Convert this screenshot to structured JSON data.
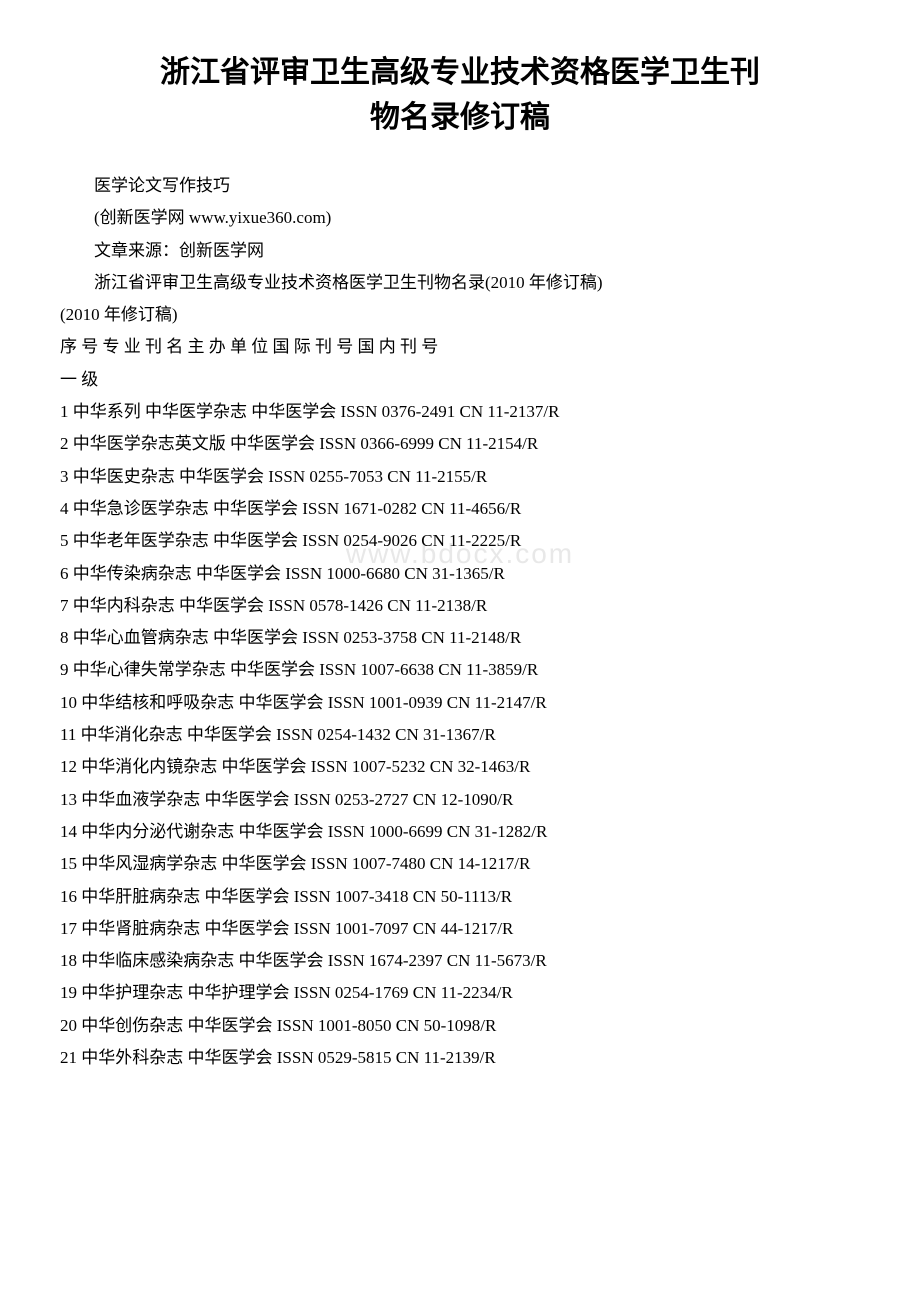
{
  "title_line1": "浙江省评审卫生高级专业技术资格医学卫生刊",
  "title_line2": "物名录修订稿",
  "p1": "医学论文写作技巧",
  "p2": "(创新医学网 www.yixue360.com)",
  "p3": "文章来源：创新医学网",
  "p4": "浙江省评审卫生高级专业技术资格医学卫生刊物名录(2010 年修订稿)",
  "p5": "(2010 年修订稿)",
  "header_row": "序 号 专   业 刊   名 主 办 单 位 国 际 刊 号 国 内 刊 号",
  "level_row": "一    级",
  "watermark": "www.bdocx.com",
  "rows": [
    "1 中华系列 中华医学杂志 中华医学会 ISSN 0376-2491 CN 11-2137/R",
    "2  中华医学杂志英文版 中华医学会 ISSN 0366-6999 CN 11-2154/R",
    "3  中华医史杂志 中华医学会 ISSN 0255-7053 CN 11-2155/R",
    "4  中华急诊医学杂志 中华医学会 ISSN 1671-0282 CN 11-4656/R",
    "5  中华老年医学杂志 中华医学会 ISSN 0254-9026 CN 11-2225/R",
    "6  中华传染病杂志 中华医学会 ISSN 1000-6680 CN 31-1365/R",
    "7  中华内科杂志 中华医学会 ISSN 0578-1426 CN 11-2138/R",
    "8  中华心血管病杂志 中华医学会 ISSN 0253-3758 CN 11-2148/R",
    "9  中华心律失常学杂志 中华医学会 ISSN 1007-6638 CN 11-3859/R",
    "10  中华结核和呼吸杂志 中华医学会 ISSN 1001-0939 CN 11-2147/R",
    "11  中华消化杂志 中华医学会 ISSN 0254-1432 CN 31-1367/R",
    "12  中华消化内镜杂志 中华医学会 ISSN 1007-5232 CN 32-1463/R",
    "13  中华血液学杂志 中华医学会 ISSN 0253-2727 CN 12-1090/R",
    "14  中华内分泌代谢杂志 中华医学会 ISSN 1000-6699 CN 31-1282/R",
    "15  中华风湿病学杂志 中华医学会 ISSN 1007-7480 CN 14-1217/R",
    "16  中华肝脏病杂志 中华医学会 ISSN 1007-3418 CN 50-1113/R",
    "17  中华肾脏病杂志 中华医学会 ISSN 1001-7097 CN 44-1217/R",
    "18  中华临床感染病杂志 中华医学会 ISSN 1674-2397 CN 11-5673/R",
    "19  中华护理杂志 中华护理学会 ISSN 0254-1769 CN 11-2234/R",
    "20  中华创伤杂志 中华医学会 ISSN 1001-8050 CN 50-1098/R",
    "21  中华外科杂志 中华医学会 ISSN 0529-5815 CN 11-2139/R"
  ]
}
